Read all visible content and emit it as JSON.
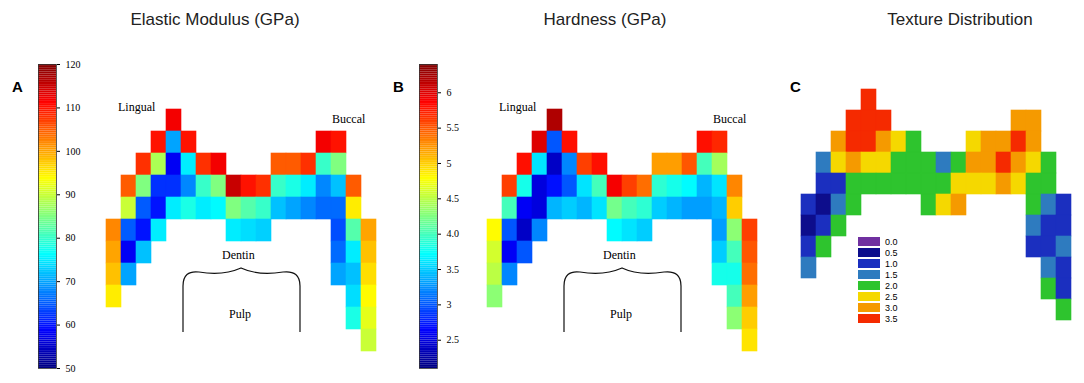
{
  "chart_data": [
    {
      "type": "heatmap",
      "panel": "A",
      "title": "Elastic Modulus (GPa)",
      "annotations": [
        "Lingual",
        "Buccal",
        "Dentin",
        "Pulp"
      ],
      "colorbar": {
        "range": [
          50,
          120
        ],
        "ticks": [
          50,
          60,
          70,
          80,
          90,
          100,
          110,
          120
        ]
      },
      "cells": [
        [
          null,
          null,
          null,
          null,
          112,
          null,
          null,
          null,
          null,
          null,
          null,
          null,
          null,
          null,
          null,
          null,
          null,
          null
        ],
        [
          null,
          null,
          null,
          110,
          70,
          110,
          null,
          null,
          null,
          null,
          null,
          null,
          null,
          null,
          112,
          110,
          null,
          null
        ],
        [
          null,
          null,
          108,
          88,
          58,
          75,
          108,
          112,
          null,
          null,
          null,
          105,
          105,
          108,
          80,
          85,
          null,
          null
        ],
        [
          null,
          105,
          85,
          62,
          62,
          68,
          80,
          85,
          115,
          110,
          108,
          80,
          78,
          75,
          68,
          72,
          105,
          null
        ],
        [
          null,
          90,
          65,
          60,
          75,
          78,
          75,
          76,
          85,
          82,
          80,
          72,
          70,
          68,
          66,
          66,
          95,
          null
        ],
        [
          102,
          65,
          60,
          75,
          null,
          null,
          null,
          null,
          75,
          74,
          73,
          null,
          null,
          null,
          null,
          64,
          82,
          100
        ],
        [
          100,
          58,
          72,
          null,
          null,
          null,
          null,
          null,
          null,
          null,
          null,
          null,
          null,
          null,
          null,
          66,
          75,
          98
        ],
        [
          98,
          70,
          null,
          null,
          null,
          null,
          null,
          null,
          null,
          null,
          null,
          null,
          null,
          null,
          null,
          70,
          72,
          96
        ],
        [
          95,
          null,
          null,
          null,
          null,
          null,
          null,
          null,
          null,
          null,
          null,
          null,
          null,
          null,
          null,
          null,
          74,
          94
        ],
        [
          null,
          null,
          null,
          null,
          null,
          null,
          null,
          null,
          null,
          null,
          null,
          null,
          null,
          null,
          null,
          null,
          78,
          92
        ],
        [
          null,
          null,
          null,
          null,
          null,
          null,
          null,
          null,
          null,
          null,
          null,
          null,
          null,
          null,
          null,
          null,
          null,
          90
        ]
      ]
    },
    {
      "type": "heatmap",
      "panel": "B",
      "title": "Hardness (GPa)",
      "annotations": [
        "Lingual",
        "Buccal",
        "Dentin",
        "Pulp"
      ],
      "colorbar": {
        "range": [
          2.1,
          6.4
        ],
        "ticks": [
          2.5,
          3,
          3.5,
          {
            "value": 4,
            "label": "4.0"
          },
          4.5,
          5,
          5.5,
          6
        ]
      },
      "cells": [
        [
          null,
          null,
          null,
          null,
          6.2,
          null,
          null,
          null,
          null,
          null,
          null,
          null,
          null,
          null,
          null,
          null,
          null,
          null
        ],
        [
          null,
          null,
          null,
          6.0,
          3.0,
          5.8,
          null,
          null,
          null,
          null,
          null,
          null,
          null,
          null,
          5.8,
          5.7,
          null,
          null
        ],
        [
          null,
          null,
          5.8,
          3.6,
          2.4,
          3.2,
          5.6,
          5.8,
          null,
          null,
          null,
          5.2,
          5.2,
          5.5,
          4.0,
          4.4,
          null,
          null
        ],
        [
          null,
          5.6,
          3.8,
          2.5,
          2.7,
          3.0,
          3.6,
          4.0,
          5.9,
          5.6,
          5.4,
          3.9,
          3.8,
          3.7,
          3.4,
          3.6,
          5.3,
          null
        ],
        [
          null,
          4.0,
          2.6,
          2.5,
          3.4,
          3.5,
          3.4,
          3.6,
          4.2,
          4.0,
          3.9,
          3.5,
          3.4,
          3.3,
          3.3,
          3.4,
          5.0,
          null
        ],
        [
          4.8,
          3.0,
          2.4,
          3.2,
          null,
          null,
          null,
          null,
          3.7,
          3.6,
          3.5,
          null,
          null,
          null,
          null,
          3.3,
          4.3,
          5.6
        ],
        [
          4.6,
          2.6,
          3.0,
          null,
          null,
          null,
          null,
          null,
          null,
          null,
          null,
          null,
          null,
          null,
          null,
          3.5,
          4.0,
          5.5
        ],
        [
          4.5,
          3.2,
          null,
          null,
          null,
          null,
          null,
          null,
          null,
          null,
          null,
          null,
          null,
          null,
          null,
          3.8,
          3.8,
          5.4
        ],
        [
          4.3,
          null,
          null,
          null,
          null,
          null,
          null,
          null,
          null,
          null,
          null,
          null,
          null,
          null,
          null,
          null,
          4.0,
          5.2
        ],
        [
          null,
          null,
          null,
          null,
          null,
          null,
          null,
          null,
          null,
          null,
          null,
          null,
          null,
          null,
          null,
          null,
          4.3,
          5.0
        ],
        [
          null,
          null,
          null,
          null,
          null,
          null,
          null,
          null,
          null,
          null,
          null,
          null,
          null,
          null,
          null,
          null,
          null,
          4.9
        ]
      ]
    },
    {
      "type": "heatmap",
      "panel": "C",
      "title": "Texture Distribution",
      "legend": "bottom-left",
      "levels": [
        {
          "value": 0,
          "label": "0.0"
        },
        0.5,
        {
          "value": 1,
          "label": "1.0"
        },
        1.5,
        {
          "value": 2,
          "label": "2.0"
        },
        2.5,
        {
          "value": 3,
          "label": "3.0"
        },
        3.5
      ],
      "colors": [
        "#7030a0",
        "#0d0d8c",
        "#1b2fbf",
        "#2e7bbf",
        "#2ec42e",
        "#f5d800",
        "#f59a00",
        "#f52a00"
      ],
      "cells": [
        [
          null,
          null,
          null,
          null,
          3.5,
          null,
          null,
          null,
          null,
          null,
          null,
          null,
          null,
          null,
          null,
          null,
          null,
          null
        ],
        [
          null,
          null,
          null,
          3.5,
          3.5,
          3.5,
          null,
          null,
          null,
          null,
          null,
          null,
          null,
          null,
          3.0,
          3.0,
          null,
          null
        ],
        [
          null,
          null,
          3.0,
          3.5,
          3.5,
          3.0,
          2.5,
          2.0,
          null,
          null,
          null,
          2.5,
          3.0,
          3.0,
          3.5,
          3.0,
          null,
          null
        ],
        [
          null,
          1.5,
          2.5,
          3.0,
          2.5,
          2.5,
          2.0,
          2.0,
          2.0,
          1.5,
          2.0,
          3.0,
          3.0,
          3.5,
          3.0,
          2.5,
          2.0,
          null
        ],
        [
          null,
          1.0,
          1.0,
          2.0,
          2.0,
          2.0,
          2.0,
          2.0,
          2.0,
          2.0,
          2.5,
          2.5,
          2.5,
          3.0,
          2.5,
          2.0,
          2.0,
          null
        ],
        [
          1.0,
          0.5,
          1.5,
          2.0,
          null,
          null,
          null,
          null,
          2.0,
          2.5,
          3.0,
          null,
          null,
          null,
          null,
          2.0,
          1.5,
          1.0
        ],
        [
          0.5,
          1.0,
          2.0,
          null,
          null,
          null,
          null,
          null,
          null,
          null,
          null,
          null,
          null,
          null,
          null,
          1.5,
          1.0,
          1.0
        ],
        [
          1.0,
          2.0,
          null,
          null,
          null,
          null,
          null,
          null,
          null,
          null,
          null,
          null,
          null,
          null,
          null,
          1.0,
          1.0,
          1.5
        ],
        [
          1.5,
          null,
          null,
          null,
          null,
          null,
          null,
          null,
          null,
          null,
          null,
          null,
          null,
          null,
          null,
          null,
          1.5,
          1.0
        ],
        [
          null,
          null,
          null,
          null,
          null,
          null,
          null,
          null,
          null,
          null,
          null,
          null,
          null,
          null,
          null,
          null,
          2.0,
          1.0
        ],
        [
          null,
          null,
          null,
          null,
          null,
          null,
          null,
          null,
          null,
          null,
          null,
          null,
          null,
          null,
          null,
          null,
          null,
          2.0
        ]
      ]
    }
  ]
}
